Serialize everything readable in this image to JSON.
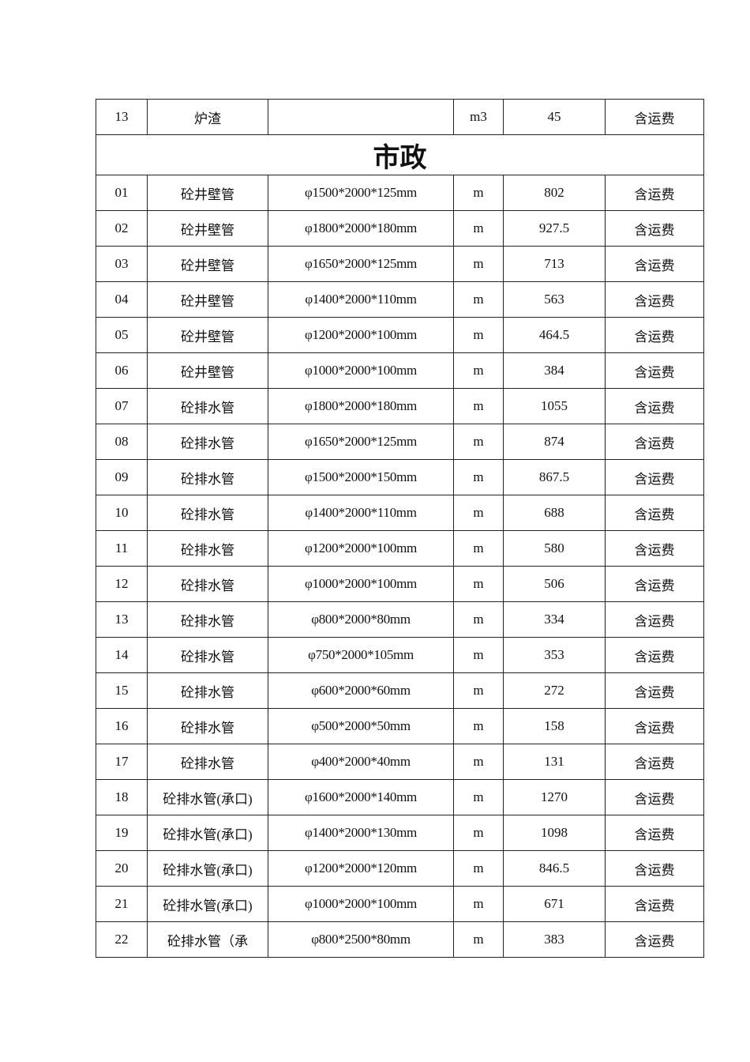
{
  "top_row": {
    "no": "13",
    "name": "炉渣",
    "spec": "",
    "unit": "m3",
    "price": "45",
    "note": "含运费"
  },
  "section_title": "市政",
  "rows": [
    {
      "no": "01",
      "name": "砼井壁管",
      "spec": "φ1500*2000*125mm",
      "unit": "m",
      "price": "802",
      "note": "含运费"
    },
    {
      "no": "02",
      "name": "砼井壁管",
      "spec": "φ1800*2000*180mm",
      "unit": "m",
      "price": "927.5",
      "note": "含运费"
    },
    {
      "no": "03",
      "name": "砼井壁管",
      "spec": "φ1650*2000*125mm",
      "unit": "m",
      "price": "713",
      "note": "含运费"
    },
    {
      "no": "04",
      "name": "砼井壁管",
      "spec": "φ1400*2000*110mm",
      "unit": "m",
      "price": "563",
      "note": "含运费"
    },
    {
      "no": "05",
      "name": "砼井壁管",
      "spec": "φ1200*2000*100mm",
      "unit": "m",
      "price": "464.5",
      "note": "含运费"
    },
    {
      "no": "06",
      "name": "砼井壁管",
      "spec": "φ1000*2000*100mm",
      "unit": "m",
      "price": "384",
      "note": "含运费"
    },
    {
      "no": "07",
      "name": "砼排水管",
      "spec": "φ1800*2000*180mm",
      "unit": "m",
      "price": "1055",
      "note": "含运费"
    },
    {
      "no": "08",
      "name": "砼排水管",
      "spec": "φ1650*2000*125mm",
      "unit": "m",
      "price": "874",
      "note": "含运费"
    },
    {
      "no": "09",
      "name": "砼排水管",
      "spec": "φ1500*2000*150mm",
      "unit": "m",
      "price": "867.5",
      "note": "含运费"
    },
    {
      "no": "10",
      "name": "砼排水管",
      "spec": "φ1400*2000*110mm",
      "unit": "m",
      "price": "688",
      "note": "含运费"
    },
    {
      "no": "11",
      "name": "砼排水管",
      "spec": "φ1200*2000*100mm",
      "unit": "m",
      "price": "580",
      "note": "含运费"
    },
    {
      "no": "12",
      "name": "砼排水管",
      "spec": "φ1000*2000*100mm",
      "unit": "m",
      "price": "506",
      "note": "含运费"
    },
    {
      "no": "13",
      "name": "砼排水管",
      "spec": "φ800*2000*80mm",
      "unit": "m",
      "price": "334",
      "note": "含运费"
    },
    {
      "no": "14",
      "name": "砼排水管",
      "spec": "φ750*2000*105mm",
      "unit": "m",
      "price": "353",
      "note": "含运费"
    },
    {
      "no": "15",
      "name": "砼排水管",
      "spec": "φ600*2000*60mm",
      "unit": "m",
      "price": "272",
      "note": "含运费"
    },
    {
      "no": "16",
      "name": "砼排水管",
      "spec": "φ500*2000*50mm",
      "unit": "m",
      "price": "158",
      "note": "含运费"
    },
    {
      "no": "17",
      "name": "砼排水管",
      "spec": "φ400*2000*40mm",
      "unit": "m",
      "price": "131",
      "note": "含运费"
    },
    {
      "no": "18",
      "name": "砼排水管(承口)",
      "spec": "φ1600*2000*140mm",
      "unit": "m",
      "price": "1270",
      "note": "含运费"
    },
    {
      "no": "19",
      "name": "砼排水管(承口)",
      "spec": "φ1400*2000*130mm",
      "unit": "m",
      "price": "1098",
      "note": "含运费"
    },
    {
      "no": "20",
      "name": "砼排水管(承口)",
      "spec": "φ1200*2000*120mm",
      "unit": "m",
      "price": "846.5",
      "note": "含运费"
    },
    {
      "no": "21",
      "name": "砼排水管(承口)",
      "spec": "φ1000*2000*100mm",
      "unit": "m",
      "price": "671",
      "note": "含运费"
    },
    {
      "no": "22",
      "name": "砼排水管（承",
      "spec": "φ800*2500*80mm",
      "unit": "m",
      "price": "383",
      "note": "含运费"
    }
  ]
}
